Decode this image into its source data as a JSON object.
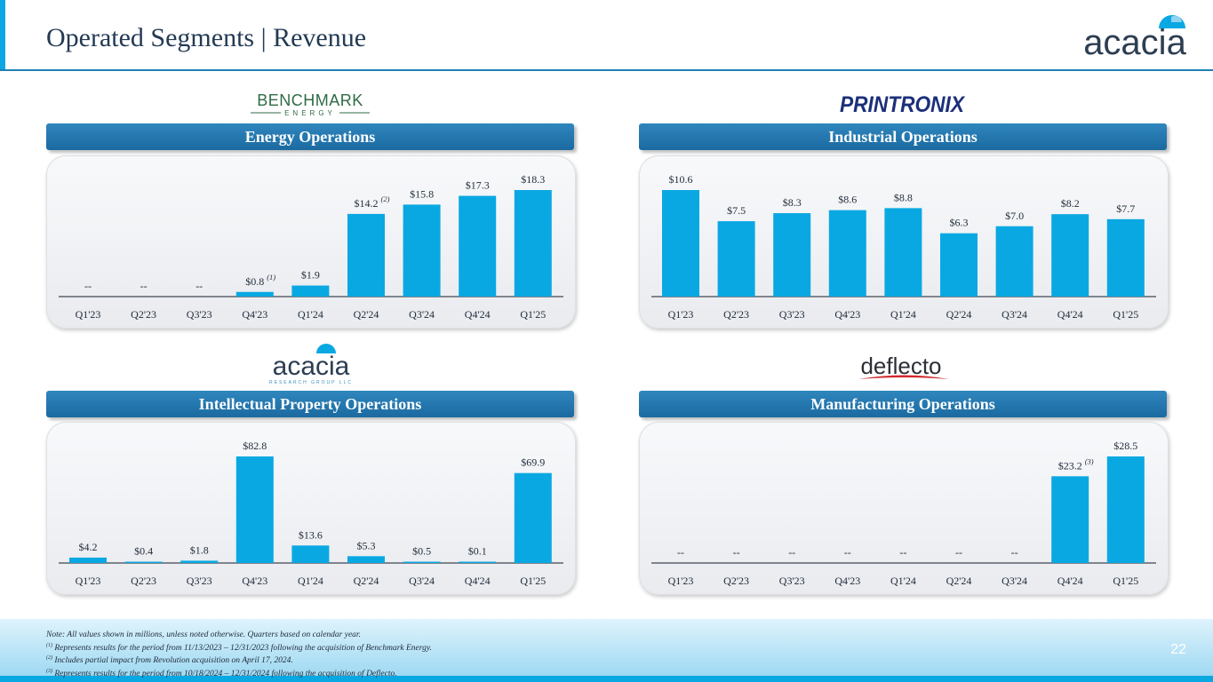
{
  "header": {
    "title": "Operated Segments | Revenue",
    "brand_logo_text": "acacia"
  },
  "logos": {
    "benchmark": {
      "main": "BENCHMARK",
      "sub": "ENERGY"
    },
    "printronix": "PRINTRONIX",
    "acacia_rg": {
      "main": "acacia",
      "sub": "RESEARCH GROUP LLC"
    },
    "deflecto": "deflecto"
  },
  "colors": {
    "bar": "#0aa8e2",
    "banner": "#1f75ad",
    "title": "#233a54",
    "accent": "#0aa8e2"
  },
  "chart_data": [
    {
      "type": "bar",
      "title": "Energy Operations",
      "categories": [
        "Q1'23",
        "Q2'23",
        "Q3'23",
        "Q4'23",
        "Q1'24",
        "Q2'24",
        "Q3'24",
        "Q4'24",
        "Q1'25"
      ],
      "values": [
        null,
        null,
        null,
        0.8,
        1.9,
        14.2,
        15.8,
        17.3,
        18.3
      ],
      "labels": [
        "--",
        "--",
        "--",
        "$0.8",
        "$1.9",
        "$14.2",
        "$15.8",
        "$17.3",
        "$18.3"
      ],
      "footnotes": [
        "",
        "",
        "",
        "(1)",
        "",
        "(2)",
        "",
        "",
        ""
      ],
      "ymax": 18.3,
      "xlabel": "",
      "ylabel": "",
      "units": "$M"
    },
    {
      "type": "bar",
      "title": "Industrial Operations",
      "categories": [
        "Q1'23",
        "Q2'23",
        "Q3'23",
        "Q4'23",
        "Q1'24",
        "Q2'24",
        "Q3'24",
        "Q4'24",
        "Q1'25"
      ],
      "values": [
        10.6,
        7.5,
        8.3,
        8.6,
        8.8,
        6.3,
        7.0,
        8.2,
        7.7
      ],
      "labels": [
        "$10.6",
        "$7.5",
        "$8.3",
        "$8.6",
        "$8.8",
        "$6.3",
        "$7.0",
        "$8.2",
        "$7.7"
      ],
      "footnotes": [
        "",
        "",
        "",
        "",
        "",
        "",
        "",
        "",
        ""
      ],
      "ymax": 10.6,
      "xlabel": "",
      "ylabel": "",
      "units": "$M"
    },
    {
      "type": "bar",
      "title": "Intellectual Property Operations",
      "categories": [
        "Q1'23",
        "Q2'23",
        "Q3'23",
        "Q4'23",
        "Q1'24",
        "Q2'24",
        "Q3'24",
        "Q4'24",
        "Q1'25"
      ],
      "values": [
        4.2,
        0.4,
        1.8,
        82.8,
        13.6,
        5.3,
        0.5,
        0.1,
        69.9
      ],
      "labels": [
        "$4.2",
        "$0.4",
        "$1.8",
        "$82.8",
        "$13.6",
        "$5.3",
        "$0.5",
        "$0.1",
        "$69.9"
      ],
      "footnotes": [
        "",
        "",
        "",
        "",
        "",
        "",
        "",
        "",
        ""
      ],
      "ymax": 82.8,
      "xlabel": "",
      "ylabel": "",
      "units": "$M"
    },
    {
      "type": "bar",
      "title": "Manufacturing Operations",
      "categories": [
        "Q1'23",
        "Q2'23",
        "Q3'23",
        "Q4'23",
        "Q1'24",
        "Q2'24",
        "Q3'24",
        "Q4'24",
        "Q1'25"
      ],
      "values": [
        null,
        null,
        null,
        null,
        null,
        null,
        null,
        23.2,
        28.5
      ],
      "labels": [
        "--",
        "--",
        "--",
        "--",
        "--",
        "--",
        "--",
        "$23.2",
        "$28.5"
      ],
      "footnotes": [
        "",
        "",
        "",
        "",
        "",
        "",
        "",
        "(3)",
        ""
      ],
      "ymax": 28.5,
      "xlabel": "",
      "ylabel": "",
      "units": "$M"
    }
  ],
  "footer": {
    "notes": [
      {
        "mark": "",
        "text": "Note: All values shown in millions, unless noted otherwise. Quarters based on calendar year."
      },
      {
        "mark": "(1)",
        "text": " Represents results for the period from 11/13/2023 – 12/31/2023 following the acquisition of Benchmark Energy."
      },
      {
        "mark": "(2)",
        "text": " Includes partial impact from Revolution acquisition on April 17, 2024."
      },
      {
        "mark": "(3)",
        "text": " Represents results for the period from 10/18/2024 – 12/31/2024 following the acquisition of Deflecto."
      }
    ],
    "page_number": "22"
  }
}
